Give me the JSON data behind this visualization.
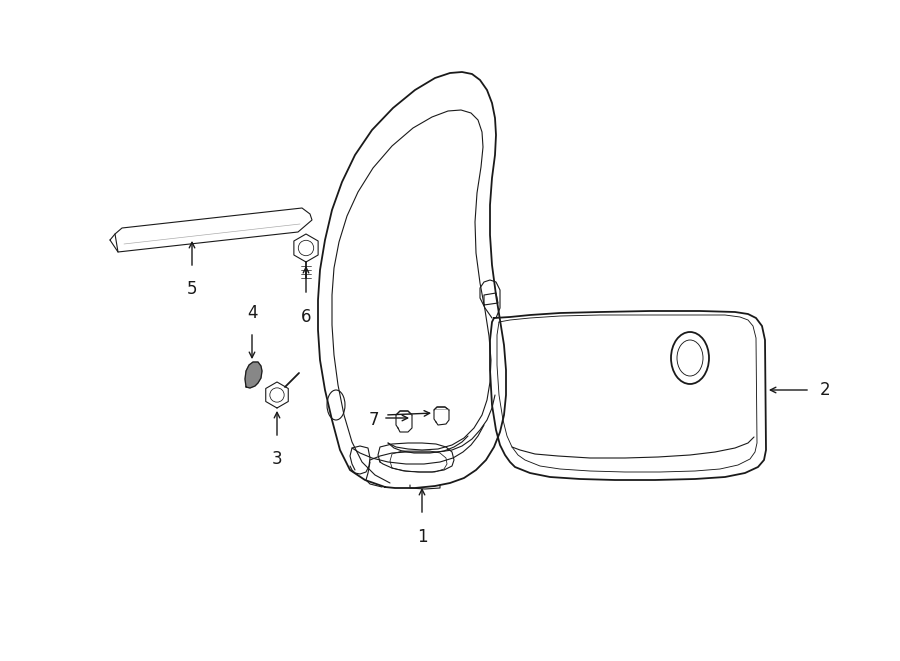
{
  "background_color": "#ffffff",
  "line_color": "#1a1a1a",
  "figsize": [
    9.0,
    6.61
  ],
  "dpi": 100,
  "lw_main": 1.3,
  "lw_thin": 0.8,
  "font_size": 12
}
